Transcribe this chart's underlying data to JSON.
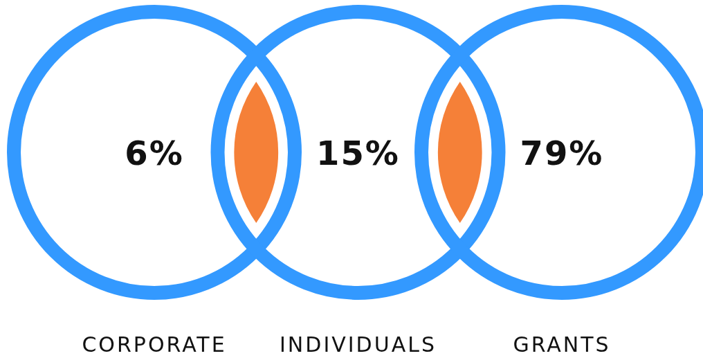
{
  "chart_data": {
    "type": "other",
    "categories": [
      "CORPORATE",
      "INDIVIDUALS",
      "GRANTS"
    ],
    "values": [
      6,
      15,
      79
    ],
    "value_labels": [
      "6%",
      "15%",
      "79%"
    ],
    "color": "#3399ff"
  }
}
